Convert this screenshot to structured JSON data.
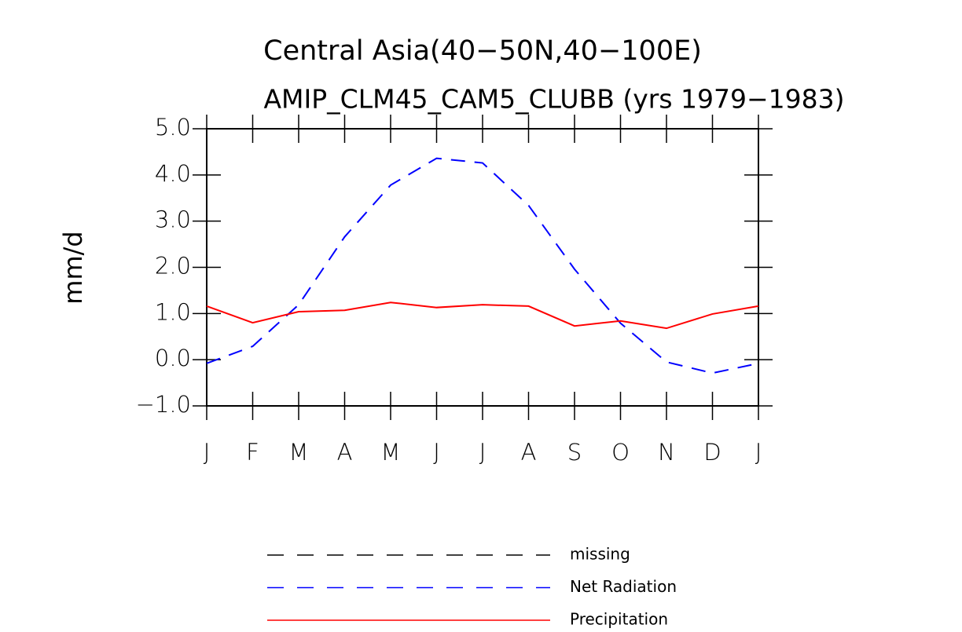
{
  "chart_data": {
    "type": "line",
    "title": "Central Asia(40−50N,40−100E)",
    "subtitle": "AMIP_CLM45_CAM5_CLUBB (yrs 1979−1983)",
    "y_label": "mm/d",
    "categories": [
      "J",
      "F",
      "M",
      "A",
      "M",
      "J",
      "J",
      "A",
      "S",
      "O",
      "N",
      "D",
      "J"
    ],
    "series": [
      {
        "name": "missing",
        "color": "#000000",
        "dashed": true,
        "values": [
          null,
          null,
          null,
          null,
          null,
          null,
          null,
          null,
          null,
          null,
          null,
          null,
          null
        ]
      },
      {
        "name": "Net Radiation",
        "color": "#0000ff",
        "dashed": true,
        "values": [
          -0.08,
          0.29,
          1.19,
          2.66,
          3.78,
          4.36,
          4.26,
          3.34,
          1.96,
          0.79,
          -0.05,
          -0.29,
          -0.08
        ]
      },
      {
        "name": "Precipitation",
        "color": "#ff0000",
        "dashed": false,
        "values": [
          1.16,
          0.8,
          1.04,
          1.07,
          1.24,
          1.13,
          1.19,
          1.16,
          0.73,
          0.84,
          0.68,
          0.99,
          1.16
        ]
      }
    ],
    "ylim": [
      -1,
      5
    ],
    "yticks": [
      {
        "value": -1,
        "label": "−1.0"
      },
      {
        "value": 0,
        "label": "0.0"
      },
      {
        "value": 1,
        "label": "1.0"
      },
      {
        "value": 2,
        "label": "2.0"
      },
      {
        "value": 3,
        "label": "3.0"
      },
      {
        "value": 4,
        "label": "4.0"
      },
      {
        "value": 5,
        "label": "5.0"
      }
    ],
    "grid": false
  }
}
